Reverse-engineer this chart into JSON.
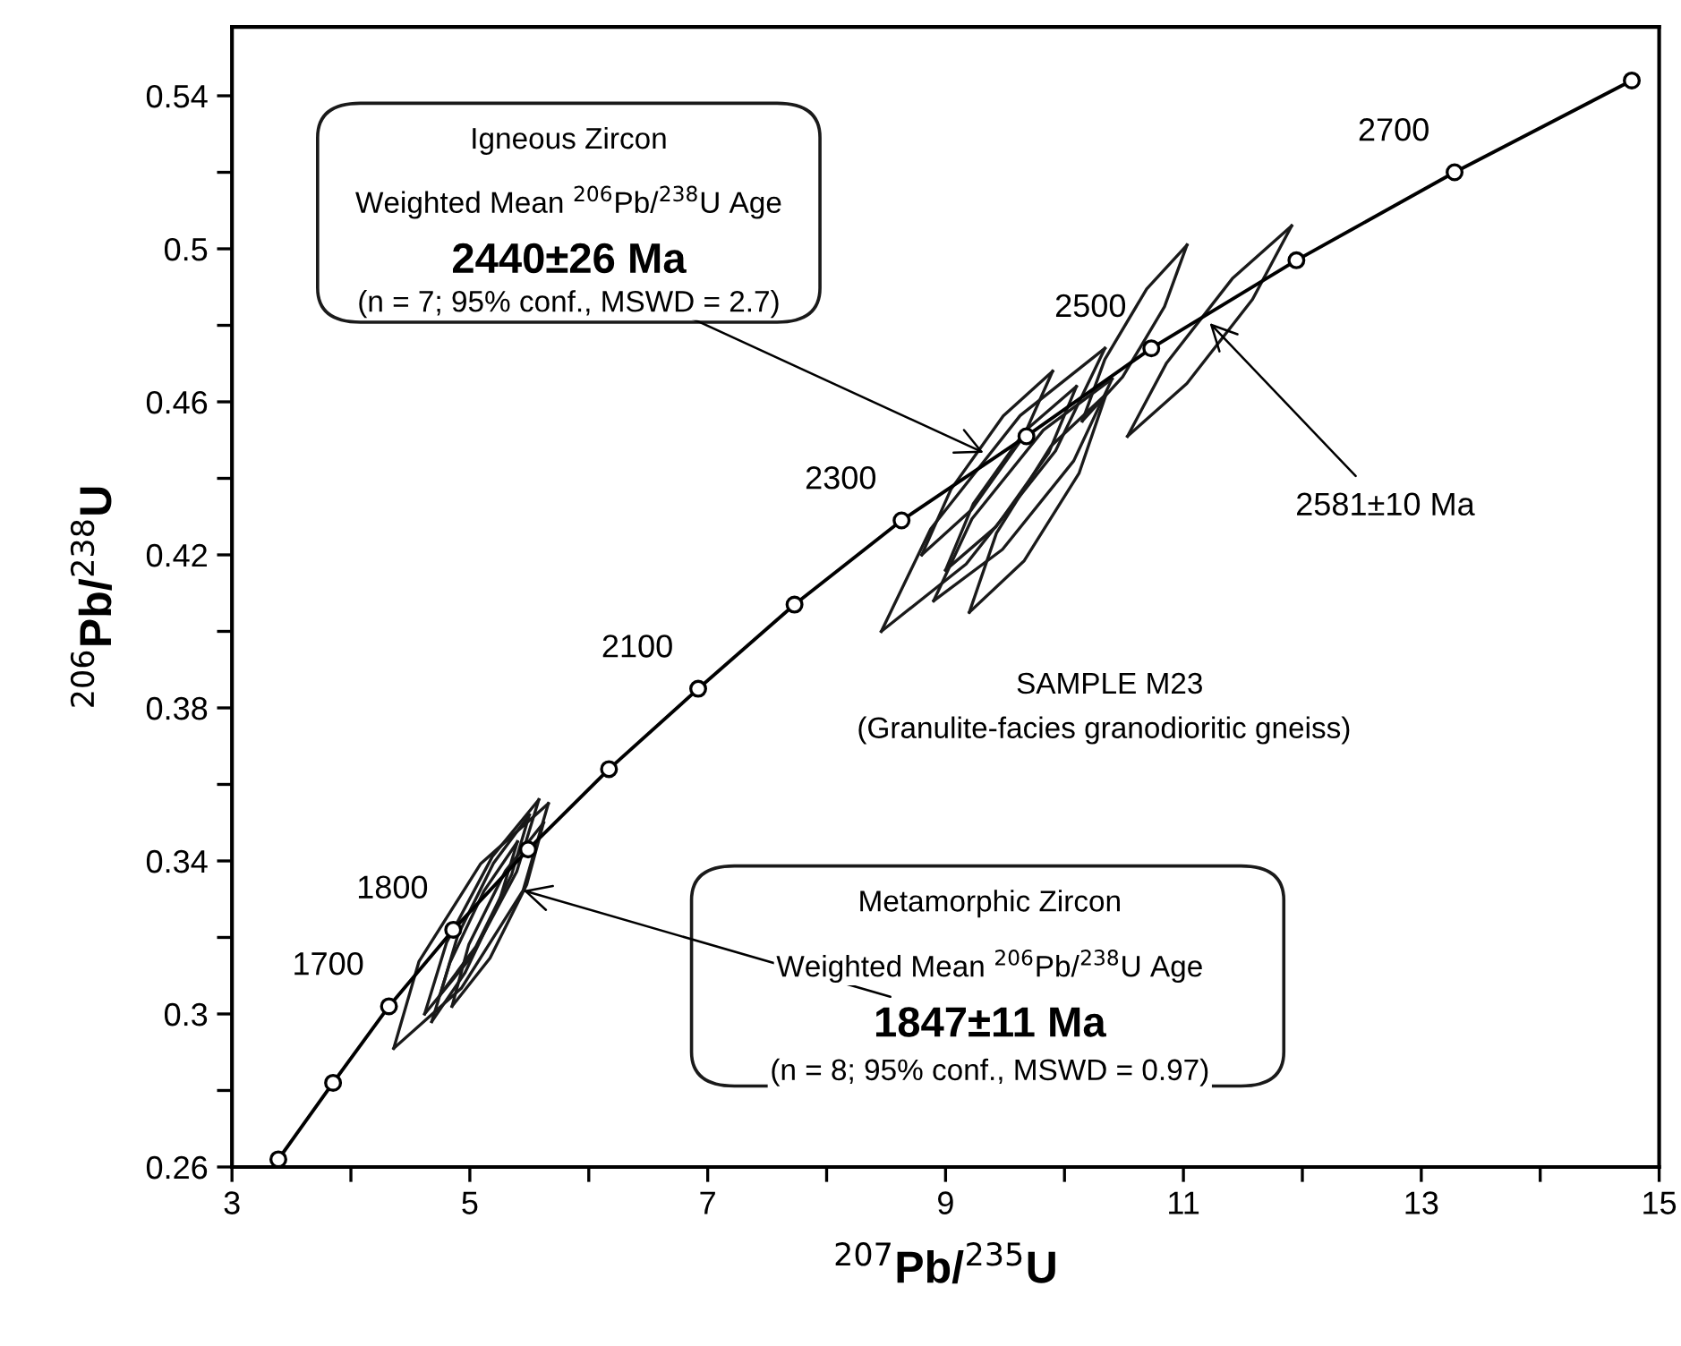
{
  "chart_data": {
    "type": "line",
    "xlabel": "$^{207}$Pb/$^{235}$U",
    "ylabel": "$^{206}$Pb/$^{238}$U",
    "xlim": [
      3,
      15
    ],
    "ylim": [
      0.26,
      0.558
    ],
    "xticks": [
      3,
      {
        "value": 4,
        "label": null
      },
      5,
      {
        "value": 6,
        "label": null
      },
      7,
      {
        "value": 8,
        "label": null
      },
      9,
      {
        "value": 10,
        "label": null
      },
      11,
      {
        "value": 12,
        "label": null
      },
      13,
      {
        "value": 14,
        "label": null
      },
      15
    ],
    "yticks": [
      0.26,
      {
        "value": 0.28,
        "label": null
      },
      0.3,
      {
        "value": 0.32,
        "label": null
      },
      0.34,
      {
        "value": 0.36,
        "label": null
      },
      0.38,
      {
        "value": 0.4,
        "label": null
      },
      0.42,
      {
        "value": 0.44,
        "label": null
      },
      0.46,
      {
        "value": 0.48,
        "label": null
      },
      0.5,
      {
        "value": 0.52,
        "label": null
      },
      0.54
    ],
    "grid": false,
    "marker": "circle",
    "line_style": "solid",
    "series": [
      {
        "color": "#000000",
        "x": [
          3.39,
          3.85,
          4.32,
          4.86,
          5.49,
          6.17,
          6.92,
          7.73,
          8.63,
          9.68,
          10.73,
          11.95,
          13.28,
          14.77
        ],
        "values": [
          0.262,
          0.282,
          0.302,
          0.322,
          0.343,
          0.364,
          0.385,
          0.407,
          0.429,
          0.451,
          0.474,
          0.497,
          0.52,
          0.544
        ]
      },
      {
        "color": "#1a1a1a",
        "marker": "none",
        "x": [
          4.36,
          4.572,
          5.092,
          5.66
        ],
        "values": [
          0.291,
          0.3137,
          0.3393,
          0.355
        ]
      },
      {
        "color": "#1a1a1a",
        "marker": "none",
        "x": [
          4.36,
          4.928,
          5.448,
          5.66
        ],
        "values": [
          0.291,
          0.3067,
          0.3323,
          0.355
        ]
      },
      {
        "color": "#1a1a1a",
        "marker": "none",
        "x": [
          4.62,
          4.806,
          5.19,
          5.58
        ],
        "values": [
          0.3,
          0.3188,
          0.3412,
          0.356
        ]
      },
      {
        "color": "#1a1a1a",
        "marker": "none",
        "x": [
          4.62,
          5.01,
          5.394,
          5.58
        ],
        "values": [
          0.3,
          0.3148,
          0.3372,
          0.356
        ]
      },
      {
        "color": "#1a1a1a",
        "marker": "none",
        "x": [
          4.75,
          4.899,
          5.199,
          5.5
        ],
        "values": [
          0.305,
          0.3206,
          0.3394,
          0.352
        ]
      },
      {
        "color": "#1a1a1a",
        "marker": "none",
        "x": [
          4.75,
          5.051,
          5.351,
          5.5
        ],
        "values": [
          0.305,
          0.3176,
          0.3364,
          0.352
        ]
      },
      {
        "color": "#1a1a1a",
        "marker": "none",
        "x": [
          4.85,
          4.992,
          5.3,
          5.62
        ],
        "values": [
          0.302,
          0.3182,
          0.3374,
          0.35
        ]
      },
      {
        "color": "#1a1a1a",
        "marker": "none",
        "x": [
          4.85,
          5.17,
          5.478,
          5.62
        ],
        "values": [
          0.302,
          0.3146,
          0.3338,
          0.35
        ]
      },
      {
        "color": "#1a1a1a",
        "marker": "none",
        "x": [
          4.68,
          4.832,
          5.12,
          5.4
        ],
        "values": [
          0.298,
          0.3134,
          0.3322,
          0.345
        ]
      },
      {
        "color": "#1a1a1a",
        "marker": "none",
        "x": [
          4.68,
          4.96,
          5.248,
          5.4
        ],
        "values": [
          0.298,
          0.3108,
          0.3296,
          0.345
        ]
      },
      {
        "color": "#1a1a1a",
        "marker": "none",
        "x": [
          8.46,
          8.875,
          9.627,
          10.34
        ],
        "values": [
          0.4,
          0.4268,
          0.4564,
          0.474
        ]
      },
      {
        "color": "#1a1a1a",
        "marker": "none",
        "x": [
          8.46,
          9.173,
          9.925,
          10.34
        ],
        "values": [
          0.4,
          0.4176,
          0.4472,
          0.474
        ]
      },
      {
        "color": "#1a1a1a",
        "marker": "none",
        "x": [
          8.9,
          9.222,
          9.822,
          10.4
        ],
        "values": [
          0.408,
          0.4294,
          0.4526,
          0.466
        ]
      },
      {
        "color": "#1a1a1a",
        "marker": "none",
        "x": [
          8.9,
          9.478,
          10.078,
          10.4
        ],
        "values": [
          0.408,
          0.4214,
          0.4446,
          0.466
        ]
      },
      {
        "color": "#1a1a1a",
        "marker": "none",
        "x": [
          9.0,
          9.234,
          9.674,
          10.1
        ],
        "values": [
          0.416,
          0.4334,
          0.4526,
          0.464
        ]
      },
      {
        "color": "#1a1a1a",
        "marker": "none",
        "x": [
          9.0,
          9.426,
          9.866,
          10.1
        ],
        "values": [
          0.416,
          0.4274,
          0.4466,
          0.464
        ]
      },
      {
        "color": "#1a1a1a",
        "marker": "none",
        "x": [
          9.2,
          9.428,
          9.888,
          10.35
        ],
        "values": [
          0.405,
          0.4257,
          0.4485,
          0.462
        ]
      },
      {
        "color": "#1a1a1a",
        "marker": "none",
        "x": [
          9.2,
          9.662,
          10.122,
          10.35
        ],
        "values": [
          0.405,
          0.4185,
          0.4413,
          0.462
        ]
      },
      {
        "color": "#1a1a1a",
        "marker": "none",
        "x": [
          8.8,
          9.045,
          9.485,
          9.9
        ],
        "values": [
          0.42,
          0.4371,
          0.4563,
          0.468
        ]
      },
      {
        "color": "#1a1a1a",
        "marker": "none",
        "x": [
          8.8,
          9.215,
          9.655,
          9.9
        ],
        "values": [
          0.42,
          0.4317,
          0.4509,
          0.468
        ]
      },
      {
        "color": "#1a1a1a",
        "marker": "none",
        "x": [
          10.15,
          10.339,
          10.691,
          11.03
        ],
        "values": [
          0.455,
          0.4711,
          0.4895,
          0.501
        ]
      },
      {
        "color": "#1a1a1a",
        "marker": "none",
        "x": [
          10.15,
          10.489,
          10.841,
          11.03
        ],
        "values": [
          0.455,
          0.4665,
          0.4849,
          0.501
        ]
      },
      {
        "color": "#1a1a1a",
        "marker": "none",
        "x": [
          10.53,
          10.859,
          11.411,
          11.91
        ],
        "values": [
          0.451,
          0.4702,
          0.4922,
          0.506
        ]
      },
      {
        "color": "#1a1a1a",
        "marker": "none",
        "x": [
          10.53,
          11.029,
          11.581,
          11.91
        ],
        "values": [
          0.451,
          0.4648,
          0.4868,
          0.506
        ]
      }
    ],
    "annotations": [
      "Igneous Zircon",
      "Weighted Mean $^{206}$Pb/$^{238}$U Age",
      {
        "text": "2440±26 Ma",
        "x": 9.32,
        "y": 0.4467
      },
      "(n = 7; 95% conf., MSWD = 2.7)",
      "Metamorphic Zircon",
      "Weighted Mean $^{206}$Pb/$^{238}$U Age",
      {
        "text": "1847±11 Ma",
        "x": 5.448,
        "y": 0.3323
      },
      "(n = 8; 95% conf., MSWD = 0.97)",
      {
        "text": "2581±10 Ma",
        "x": 11.22,
        "y": 0.4806
      },
      "SAMPLE M23",
      "(Granulite-facies granodioritic gneiss)",
      {
        "text": "1700",
        "x": 4.32,
        "y": 0.302
      },
      {
        "text": "1800",
        "x": 4.86,
        "y": 0.322
      },
      {
        "text": "2100",
        "x": 6.92,
        "y": 0.385
      },
      {
        "text": "2300",
        "x": 8.63,
        "y": 0.429
      },
      {
        "text": "2500",
        "x": 10.73,
        "y": 0.474
      },
      {
        "text": "2700",
        "x": 13.28,
        "y": 0.52
      }
    ]
  }
}
